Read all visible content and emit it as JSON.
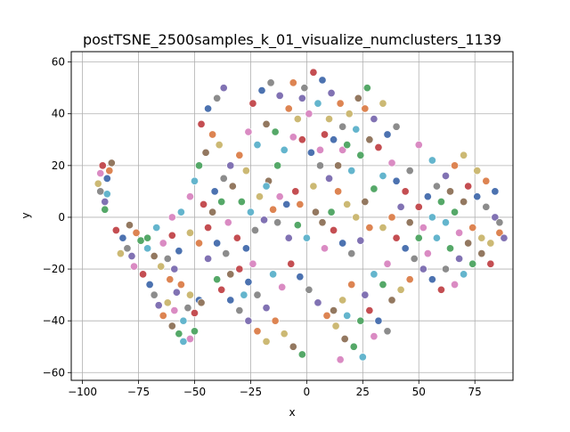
{
  "chart_data": {
    "type": "scatter",
    "title": "postTSNE_2500samples_k_01_visualize_numclusters_1139",
    "xlabel": "x",
    "ylabel": "y",
    "xlim": [
      -105,
      92
    ],
    "ylim": [
      -63,
      64
    ],
    "xticks": [
      -100,
      -75,
      -50,
      -25,
      0,
      25,
      50,
      75
    ],
    "yticks": [
      -60,
      -40,
      -20,
      0,
      20,
      40,
      60
    ],
    "xtick_labels": [
      "−100",
      "−75",
      "−50",
      "−25",
      "0",
      "25",
      "50",
      "75"
    ],
    "ytick_labels": [
      "−60",
      "−40",
      "−20",
      "0",
      "20",
      "40",
      "60"
    ],
    "grid": true,
    "legend": false,
    "palette": [
      "#4c72b0",
      "#dd8452",
      "#55a868",
      "#c44e52",
      "#8172b3",
      "#937860",
      "#da8bc3",
      "#8c8c8c",
      "#ccb974",
      "#64b5cd"
    ],
    "points": [
      [
        -91,
        20
      ],
      [
        -89,
        15
      ],
      [
        -92,
        10
      ],
      [
        -90,
        6
      ],
      [
        -88,
        18
      ],
      [
        -93,
        13
      ],
      [
        -87,
        21
      ],
      [
        -90,
        3
      ],
      [
        -89,
        9
      ],
      [
        -92,
        17
      ],
      [
        -85,
        -5
      ],
      [
        -82,
        -8
      ],
      [
        -80,
        -12
      ],
      [
        -78,
        -15
      ],
      [
        -76,
        -6
      ],
      [
        -83,
        -14
      ],
      [
        -79,
        -3
      ],
      [
        -74,
        -9
      ],
      [
        -71,
        -12
      ],
      [
        -77,
        -19
      ],
      [
        -73,
        -22
      ],
      [
        -70,
        -26
      ],
      [
        -68,
        -30
      ],
      [
        -66,
        -34
      ],
      [
        -64,
        -38
      ],
      [
        -62,
        -33
      ],
      [
        -60,
        -42
      ],
      [
        -57,
        -45
      ],
      [
        -55,
        -40
      ],
      [
        -52,
        -47
      ],
      [
        -50,
        -37
      ],
      [
        -48,
        -32
      ],
      [
        -53,
        -35
      ],
      [
        -58,
        -29
      ],
      [
        -61,
        -24
      ],
      [
        -65,
        -19
      ],
      [
        -68,
        -15
      ],
      [
        -71,
        -8
      ],
      [
        -67,
        -4
      ],
      [
        -64,
        -10
      ],
      [
        -60,
        -7
      ],
      [
        -57,
        -13
      ],
      [
        -62,
        -16
      ],
      [
        -59,
        -20
      ],
      [
        -56,
        -26
      ],
      [
        -52,
        -30
      ],
      [
        -47,
        -33
      ],
      [
        -50,
        -44
      ],
      [
        -55,
        -48
      ],
      [
        -59,
        -36
      ],
      [
        -47,
        36
      ],
      [
        -44,
        42
      ],
      [
        -40,
        46
      ],
      [
        -37,
        50
      ],
      [
        -42,
        32
      ],
      [
        -39,
        28
      ],
      [
        -45,
        25
      ],
      [
        -48,
        20
      ],
      [
        -50,
        14
      ],
      [
        -52,
        8
      ],
      [
        -46,
        5
      ],
      [
        -41,
        10
      ],
      [
        -37,
        15
      ],
      [
        -34,
        20
      ],
      [
        -30,
        24
      ],
      [
        -27,
        18
      ],
      [
        -33,
        12
      ],
      [
        -29,
        6
      ],
      [
        -25,
        2
      ],
      [
        -35,
        -2
      ],
      [
        -31,
        -8
      ],
      [
        -27,
        -12
      ],
      [
        -23,
        -5
      ],
      [
        -19,
        -1
      ],
      [
        -15,
        3
      ],
      [
        -21,
        8
      ],
      [
        -17,
        14
      ],
      [
        -13,
        20
      ],
      [
        -10,
        26
      ],
      [
        -6,
        31
      ],
      [
        -24,
        44
      ],
      [
        -20,
        49
      ],
      [
        -16,
        52
      ],
      [
        -12,
        47
      ],
      [
        -8,
        42
      ],
      [
        -4,
        38
      ],
      [
        -18,
        36
      ],
      [
        -14,
        33
      ],
      [
        -22,
        28
      ],
      [
        -26,
        33
      ],
      [
        -30,
        -20
      ],
      [
        -26,
        -25
      ],
      [
        -22,
        -30
      ],
      [
        -18,
        -35
      ],
      [
        -14,
        -40
      ],
      [
        -10,
        -45
      ],
      [
        -6,
        -50
      ],
      [
        -2,
        -53
      ],
      [
        -15,
        -22
      ],
      [
        -11,
        -27
      ],
      [
        -7,
        -18
      ],
      [
        -3,
        -23
      ],
      [
        1,
        -28
      ],
      [
        5,
        -33
      ],
      [
        9,
        -38
      ],
      [
        13,
        -42
      ],
      [
        17,
        -47
      ],
      [
        21,
        -50
      ],
      [
        25,
        -54
      ],
      [
        15,
        -55
      ],
      [
        3,
        56
      ],
      [
        7,
        53
      ],
      [
        -1,
        50
      ],
      [
        11,
        48
      ],
      [
        15,
        44
      ],
      [
        19,
        40
      ],
      [
        23,
        46
      ],
      [
        27,
        50
      ],
      [
        5,
        44
      ],
      [
        1,
        40
      ],
      [
        -2,
        30
      ],
      [
        2,
        25
      ],
      [
        6,
        20
      ],
      [
        10,
        15
      ],
      [
        14,
        10
      ],
      [
        18,
        5
      ],
      [
        4,
        2
      ],
      [
        -4,
        -3
      ],
      [
        0,
        -8
      ],
      [
        8,
        -12
      ],
      [
        12,
        -5
      ],
      [
        16,
        -10
      ],
      [
        20,
        -14
      ],
      [
        24,
        -9
      ],
      [
        28,
        -4
      ],
      [
        22,
        0
      ],
      [
        26,
        6
      ],
      [
        30,
        11
      ],
      [
        34,
        16
      ],
      [
        38,
        21
      ],
      [
        32,
        27
      ],
      [
        36,
        32
      ],
      [
        40,
        35
      ],
      [
        30,
        38
      ],
      [
        26,
        42
      ],
      [
        34,
        44
      ],
      [
        28,
        30
      ],
      [
        24,
        24
      ],
      [
        20,
        18
      ],
      [
        16,
        26
      ],
      [
        40,
        -8
      ],
      [
        44,
        -12
      ],
      [
        48,
        -16
      ],
      [
        52,
        -20
      ],
      [
        46,
        -24
      ],
      [
        42,
        -28
      ],
      [
        38,
        -32
      ],
      [
        34,
        -26
      ],
      [
        30,
        -22
      ],
      [
        36,
        -18
      ],
      [
        50,
        4
      ],
      [
        54,
        8
      ],
      [
        58,
        12
      ],
      [
        62,
        16
      ],
      [
        66,
        20
      ],
      [
        70,
        24
      ],
      [
        64,
        10
      ],
      [
        60,
        6
      ],
      [
        56,
        0
      ],
      [
        52,
        -4
      ],
      [
        72,
        12
      ],
      [
        76,
        8
      ],
      [
        80,
        4
      ],
      [
        84,
        0
      ],
      [
        86,
        -6
      ],
      [
        82,
        -10
      ],
      [
        78,
        -14
      ],
      [
        74,
        -18
      ],
      [
        70,
        -22
      ],
      [
        66,
        -26
      ],
      [
        60,
        -28
      ],
      [
        56,
        -24
      ],
      [
        62,
        -20
      ],
      [
        68,
        -16
      ],
      [
        74,
        -4
      ],
      [
        78,
        -8
      ],
      [
        72,
        -10
      ],
      [
        64,
        -12
      ],
      [
        58,
        -8
      ],
      [
        54,
        -14
      ],
      [
        44,
        10
      ],
      [
        40,
        14
      ],
      [
        46,
        18
      ],
      [
        42,
        4
      ],
      [
        38,
        0
      ],
      [
        34,
        -4
      ],
      [
        46,
        -2
      ],
      [
        50,
        -8
      ],
      [
        56,
        22
      ],
      [
        50,
        28
      ],
      [
        -5,
        10
      ],
      [
        -9,
        5
      ],
      [
        -13,
        -2
      ],
      [
        -8,
        -8
      ],
      [
        -3,
        5
      ],
      [
        3,
        12
      ],
      [
        7,
        -2
      ],
      [
        11,
        2
      ],
      [
        -18,
        12
      ],
      [
        -12,
        8
      ],
      [
        8,
        32
      ],
      [
        12,
        30
      ],
      [
        16,
        35
      ],
      [
        -2,
        46
      ],
      [
        -6,
        52
      ],
      [
        10,
        38
      ],
      [
        14,
        20
      ],
      [
        18,
        28
      ],
      [
        22,
        34
      ],
      [
        6,
        26
      ],
      [
        -38,
        -28
      ],
      [
        -34,
        -32
      ],
      [
        -30,
        -36
      ],
      [
        -26,
        -40
      ],
      [
        -22,
        -44
      ],
      [
        -18,
        -48
      ],
      [
        -34,
        -22
      ],
      [
        -40,
        -24
      ],
      [
        -28,
        -30
      ],
      [
        -24,
        -18
      ],
      [
        28,
        -36
      ],
      [
        32,
        -40
      ],
      [
        36,
        -44
      ],
      [
        26,
        -30
      ],
      [
        20,
        -26
      ],
      [
        16,
        -32
      ],
      [
        12,
        -36
      ],
      [
        24,
        -40
      ],
      [
        18,
        -38
      ],
      [
        30,
        -46
      ],
      [
        -44,
        -4
      ],
      [
        -40,
        -10
      ],
      [
        -36,
        -14
      ],
      [
        -44,
        -16
      ],
      [
        -48,
        -10
      ],
      [
        -52,
        -6
      ],
      [
        -42,
        2
      ],
      [
        -38,
        6
      ],
      [
        -56,
        2
      ],
      [
        -60,
        0
      ],
      [
        82,
        -18
      ],
      [
        84,
        10
      ],
      [
        86,
        -2
      ],
      [
        88,
        -8
      ],
      [
        80,
        14
      ],
      [
        76,
        18
      ],
      [
        70,
        6
      ],
      [
        66,
        2
      ],
      [
        62,
        -2
      ],
      [
        68,
        -6
      ]
    ]
  }
}
